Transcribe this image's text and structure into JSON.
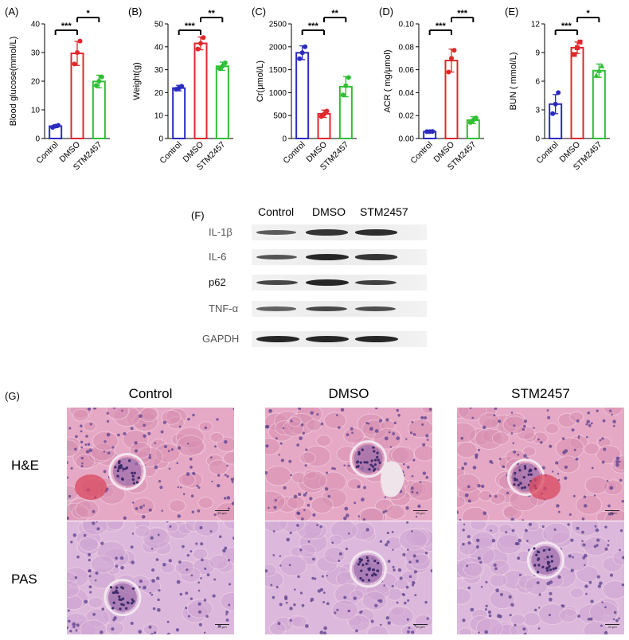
{
  "panels": [
    {
      "letter": "(A)",
      "chart_data": {
        "type": "bar",
        "categories": [
          "Control",
          "DMSO",
          "STM2457"
        ],
        "values": [
          4.3,
          29.7,
          19.9
        ],
        "errors": [
          0.5,
          4.2,
          2.2
        ],
        "points": [
          [
            3.9,
            4.3,
            4.6
          ],
          [
            26,
            30,
            34
          ],
          [
            18.5,
            20,
            21.5
          ]
        ],
        "ylabel": "Blood  glucose(mmol/L)",
        "ylim": [
          0,
          40
        ],
        "yticks": [
          0,
          10,
          20,
          30,
          40
        ],
        "colors": [
          "#2b2bbf",
          "#e0282d",
          "#2fbf35"
        ],
        "significance": [
          {
            "from": 0,
            "to": 1,
            "label": "***"
          },
          {
            "from": 1,
            "to": 2,
            "label": "*"
          }
        ]
      }
    },
    {
      "letter": "(B)",
      "chart_data": {
        "type": "bar",
        "categories": [
          "Control",
          "DMSO",
          "STM2457"
        ],
        "values": [
          22,
          41.5,
          31.5
        ],
        "errors": [
          1.2,
          2.8,
          1.8
        ],
        "points": [
          [
            21.5,
            22,
            22.8
          ],
          [
            39,
            41.5,
            44
          ],
          [
            30.5,
            31.5,
            33
          ]
        ],
        "ylabel": "Weight(g)",
        "ylim": [
          0,
          50
        ],
        "yticks": [
          0,
          10,
          20,
          30,
          40,
          50
        ],
        "colors": [
          "#2b2bbf",
          "#e0282d",
          "#2fbf35"
        ],
        "significance": [
          {
            "from": 0,
            "to": 1,
            "label": "***"
          },
          {
            "from": 1,
            "to": 2,
            "label": "**"
          }
        ]
      }
    },
    {
      "letter": "(C)",
      "chart_data": {
        "type": "bar",
        "categories": [
          "Control",
          "DMSO",
          "STM2457"
        ],
        "values": [
          1870,
          540,
          1130
        ],
        "errors": [
          150,
          80,
          220
        ],
        "points": [
          [
            1740,
            1870,
            2000
          ],
          [
            480,
            530,
            600
          ],
          [
            950,
            1150,
            1330
          ]
        ],
        "ylabel": "Cr(μmol/L)",
        "ylim": [
          0,
          2500
        ],
        "yticks": [
          0,
          500,
          1000,
          1500,
          2000,
          2500
        ],
        "colors": [
          "#2b2bbf",
          "#e0282d",
          "#2fbf35"
        ],
        "significance": [
          {
            "from": 0,
            "to": 1,
            "label": "***"
          },
          {
            "from": 1,
            "to": 2,
            "label": "**"
          }
        ]
      }
    },
    {
      "letter": "(D)",
      "chart_data": {
        "type": "bar",
        "categories": [
          "Control",
          "DMSO",
          "STM2457"
        ],
        "values": [
          0.006,
          0.068,
          0.016
        ],
        "errors": [
          0.0005,
          0.01,
          0.003
        ],
        "points": [
          [
            0.006,
            0.006,
            0.0062
          ],
          [
            0.058,
            0.07,
            0.077
          ],
          [
            0.014,
            0.016,
            0.018
          ]
        ],
        "ylabel": "ACR ( mg/μmol)",
        "ylim": [
          0,
          0.1
        ],
        "yticks": [
          0.0,
          0.02,
          0.04,
          0.06,
          0.08,
          0.1
        ],
        "ytick_labels": [
          "0.00",
          "0.02",
          "0.04",
          "0.06",
          "0.08",
          "0.10"
        ],
        "colors": [
          "#2b2bbf",
          "#e0282d",
          "#2fbf35"
        ],
        "significance": [
          {
            "from": 0,
            "to": 1,
            "label": "***"
          },
          {
            "from": 1,
            "to": 2,
            "label": "***"
          }
        ]
      }
    },
    {
      "letter": "(E)",
      "chart_data": {
        "type": "bar",
        "categories": [
          "Control",
          "DMSO",
          "STM2457"
        ],
        "values": [
          3.6,
          9.5,
          7.1
        ],
        "errors": [
          1.0,
          0.6,
          0.7
        ],
        "points": [
          [
            2.6,
            3.6,
            4.8
          ],
          [
            8.8,
            9.5,
            10.1
          ],
          [
            6.6,
            7.1,
            7.6
          ]
        ],
        "ylabel": "BUN ( mmol/L)",
        "ylim": [
          0,
          12
        ],
        "yticks": [
          0,
          3,
          6,
          9,
          12
        ],
        "colors": [
          "#2b2bbf",
          "#e0282d",
          "#2fbf35"
        ],
        "significance": [
          {
            "from": 0,
            "to": 1,
            "label": "***"
          },
          {
            "from": 1,
            "to": 2,
            "label": "*"
          }
        ]
      }
    }
  ],
  "western": {
    "letter": "(F)",
    "columns": [
      "Control",
      "DMSO",
      "STM2457"
    ],
    "rows": [
      {
        "label": "IL-1β",
        "intensity": [
          0.55,
          0.85,
          0.9
        ]
      },
      {
        "label": "IL-6",
        "intensity": [
          0.6,
          0.95,
          0.85
        ]
      },
      {
        "label": "p62",
        "intensity": [
          0.7,
          0.95,
          0.75
        ]
      },
      {
        "label": "TNF-α",
        "intensity": [
          0.5,
          0.7,
          0.65
        ]
      },
      {
        "label": "GAPDH",
        "intensity": [
          0.95,
          0.95,
          0.95
        ]
      }
    ]
  },
  "histology": {
    "letter": "(G)",
    "columns": [
      "Control",
      "DMSO",
      "STM2457"
    ],
    "rows": [
      "H&E",
      "PAS"
    ],
    "scale_text": "20 μm",
    "tile_colors": {
      "he_base": "#e6a9c5",
      "pas_base": "#dcb9dc",
      "nuclei": "#5a3f8c"
    }
  }
}
